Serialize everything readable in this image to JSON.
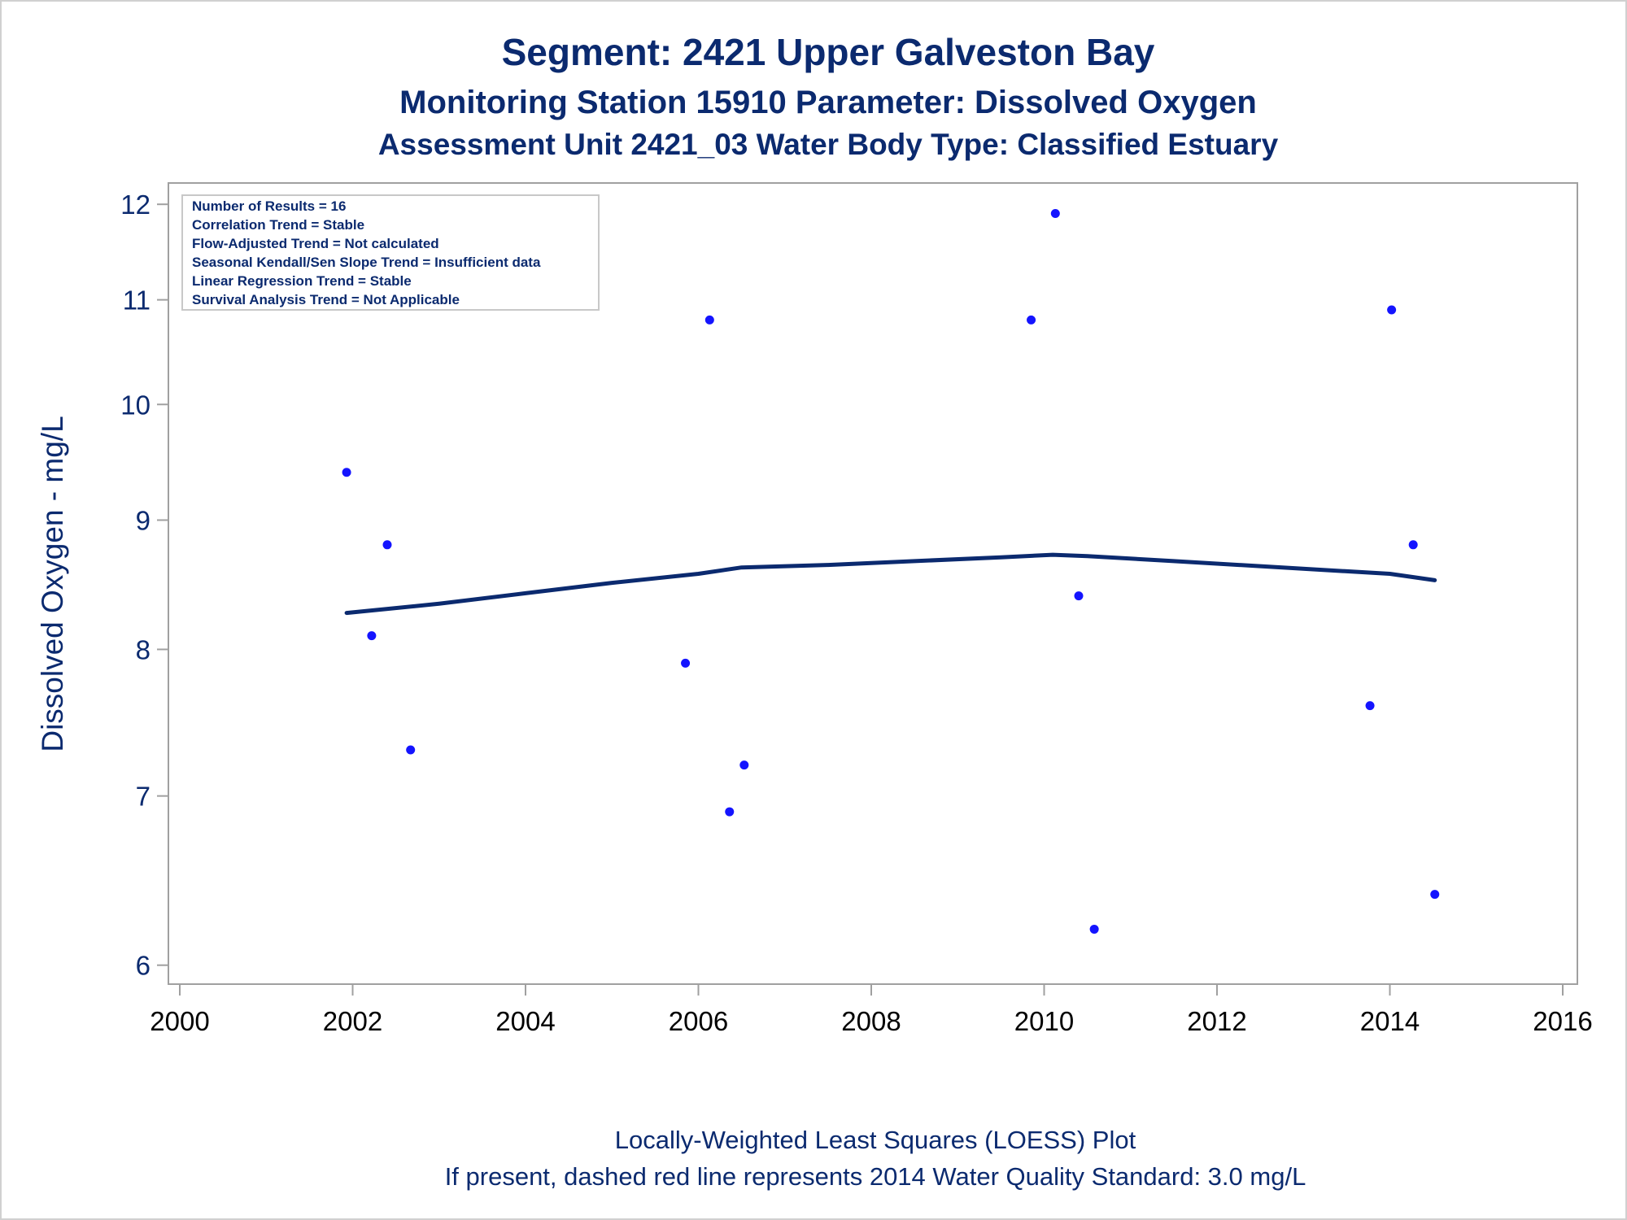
{
  "titles": {
    "line1": "Segment: 2421  Upper Galveston Bay",
    "line2": "Monitoring Station 15910 Parameter: Dissolved Oxygen",
    "line3": "Assessment Unit 2421_03   Water Body Type: Classified Estuary"
  },
  "footnotes": {
    "line1": "Locally-Weighted Least Squares (LOESS) Plot",
    "line2": "If present, dashed red line represents 2014 Water Quality Standard: 3.0 mg/L"
  },
  "inset": [
    "Number of Results = 16",
    "Correlation Trend = Stable",
    "Flow-Adjusted Trend = Not calculated",
    "Seasonal Kendall/Sen Slope Trend = Insufficient data",
    "Linear Regression Trend = Stable",
    "Survival Analysis Trend = Not Applicable"
  ],
  "colors": {
    "points": "#1414ff",
    "loess": "#0b2a6f",
    "text": "#0b2a6f",
    "axis": "#a0a0a0"
  },
  "chart_data": {
    "type": "scatter",
    "ylabel": "Dissolved Oxygen - mg/L",
    "xlabel": "",
    "y_scale": "log",
    "xlim": [
      2000,
      2016
    ],
    "ylim": [
      5.95,
      12.1
    ],
    "xticks": [
      "2000",
      "2002",
      "2004",
      "2006",
      "2008",
      "2010",
      "2012",
      "2014",
      "2016"
    ],
    "yticks": [
      "6",
      "7",
      "8",
      "9",
      "10",
      "11",
      "12"
    ],
    "grid": false,
    "series": [
      {
        "kind": "points",
        "x": [
          2001.93,
          2002.22,
          2002.4,
          2002.67,
          2005.85,
          2006.13,
          2006.36,
          2006.53,
          2009.85,
          2010.13,
          2010.4,
          2010.58,
          2013.77,
          2014.02,
          2014.27,
          2014.52
        ],
        "y": [
          9.4,
          8.1,
          8.8,
          7.3,
          7.9,
          10.8,
          6.9,
          7.2,
          10.8,
          11.9,
          8.4,
          6.2,
          7.6,
          10.9,
          8.8,
          6.4
        ]
      },
      {
        "kind": "loess",
        "x": [
          2001.93,
          2003,
          2004,
          2005,
          2006,
          2006.5,
          2007.5,
          2008.5,
          2009.5,
          2010.1,
          2010.5,
          2011.5,
          2012.5,
          2013.5,
          2014,
          2014.52
        ],
        "y": [
          8.27,
          8.34,
          8.42,
          8.5,
          8.57,
          8.62,
          8.64,
          8.67,
          8.7,
          8.72,
          8.71,
          8.67,
          8.63,
          8.59,
          8.57,
          8.52
        ]
      }
    ]
  }
}
